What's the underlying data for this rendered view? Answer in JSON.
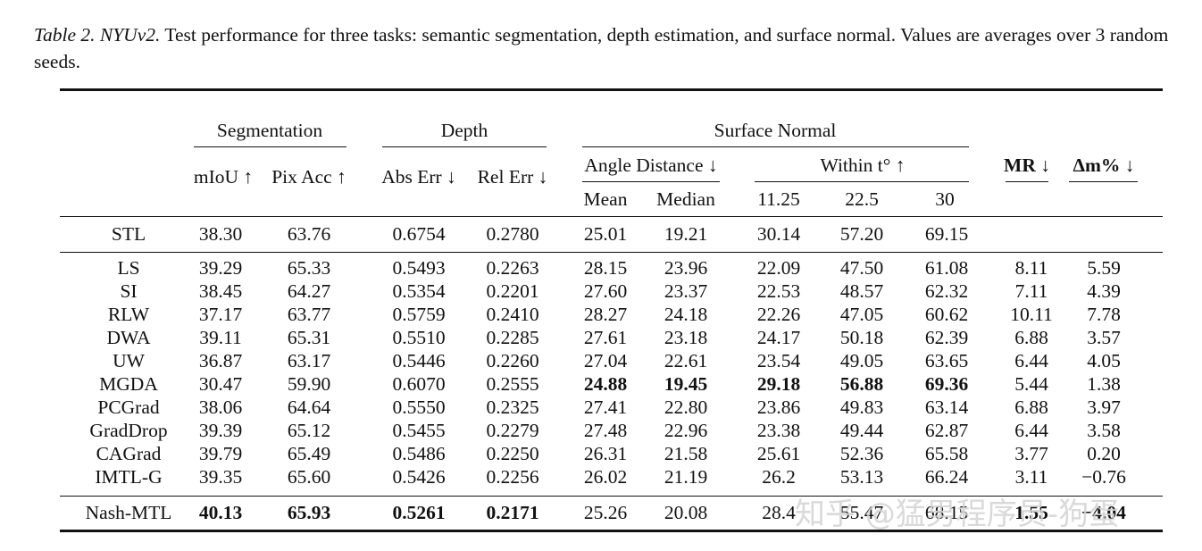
{
  "caption": {
    "label": "Table 2. NYUv2.",
    "text": " Test performance for three tasks: semantic segmentation, depth estimation, and surface normal. Values are averages over 3 random seeds."
  },
  "headers": {
    "group1": "Segmentation",
    "group2": "Depth",
    "group3": "Surface Normal",
    "angle": "Angle Distance ↓",
    "within": "Within t° ↑",
    "cols": [
      "mIoU ↑",
      "Pix Acc ↑",
      "Abs Err ↓",
      "Rel Err ↓",
      "Mean",
      "Median",
      "11.25",
      "22.5",
      "30",
      "MR ↓",
      "Δm% ↓"
    ]
  },
  "stl": {
    "name": "STL",
    "values": [
      "38.30",
      "63.76",
      "0.6754",
      "0.2780",
      "25.01",
      "19.21",
      "30.14",
      "57.20",
      "69.15",
      "",
      ""
    ]
  },
  "rows": [
    {
      "name": "LS",
      "values": [
        "39.29",
        "65.33",
        "0.5493",
        "0.2263",
        "28.15",
        "23.96",
        "22.09",
        "47.50",
        "61.08",
        "8.11",
        "5.59"
      ]
    },
    {
      "name": "SI",
      "values": [
        "38.45",
        "64.27",
        "0.5354",
        "0.2201",
        "27.60",
        "23.37",
        "22.53",
        "48.57",
        "62.32",
        "7.11",
        "4.39"
      ]
    },
    {
      "name": "RLW",
      "values": [
        "37.17",
        "63.77",
        "0.5759",
        "0.2410",
        "28.27",
        "24.18",
        "22.26",
        "47.05",
        "60.62",
        "10.11",
        "7.78"
      ]
    },
    {
      "name": "DWA",
      "values": [
        "39.11",
        "65.31",
        "0.5510",
        "0.2285",
        "27.61",
        "23.18",
        "24.17",
        "50.18",
        "62.39",
        "6.88",
        "3.57"
      ]
    },
    {
      "name": "UW",
      "values": [
        "36.87",
        "63.17",
        "0.5446",
        "0.2260",
        "27.04",
        "22.61",
        "23.54",
        "49.05",
        "63.65",
        "6.44",
        "4.05"
      ]
    },
    {
      "name": "MGDA",
      "values": [
        "30.47",
        "59.90",
        "0.6070",
        "0.2555",
        "24.88",
        "19.45",
        "29.18",
        "56.88",
        "69.36",
        "5.44",
        "1.38"
      ],
      "bold": [
        4,
        5,
        6,
        7,
        8
      ]
    },
    {
      "name": "PCGrad",
      "values": [
        "38.06",
        "64.64",
        "0.5550",
        "0.2325",
        "27.41",
        "22.80",
        "23.86",
        "49.83",
        "63.14",
        "6.88",
        "3.97"
      ]
    },
    {
      "name": "GradDrop",
      "values": [
        "39.39",
        "65.12",
        "0.5455",
        "0.2279",
        "27.48",
        "22.96",
        "23.38",
        "49.44",
        "62.87",
        "6.44",
        "3.58"
      ]
    },
    {
      "name": "CAGrad",
      "values": [
        "39.79",
        "65.49",
        "0.5486",
        "0.2250",
        "26.31",
        "21.58",
        "25.61",
        "52.36",
        "65.58",
        "3.77",
        "0.20"
      ]
    },
    {
      "name": "IMTL-G",
      "values": [
        "39.35",
        "65.60",
        "0.5426",
        "0.2256",
        "26.02",
        "21.19",
        "26.2",
        "53.13",
        "66.24",
        "3.11",
        "−0.76"
      ]
    }
  ],
  "nash": {
    "name": "Nash-MTL",
    "values": [
      "40.13",
      "65.93",
      "0.5261",
      "0.2171",
      "25.26",
      "20.08",
      "28.4",
      "55.47",
      "68.15",
      "1.55",
      "−4.04"
    ],
    "bold": [
      0,
      1,
      2,
      3,
      9,
      10
    ]
  },
  "watermark": "知乎 @猛男程序员-狗蛋"
}
